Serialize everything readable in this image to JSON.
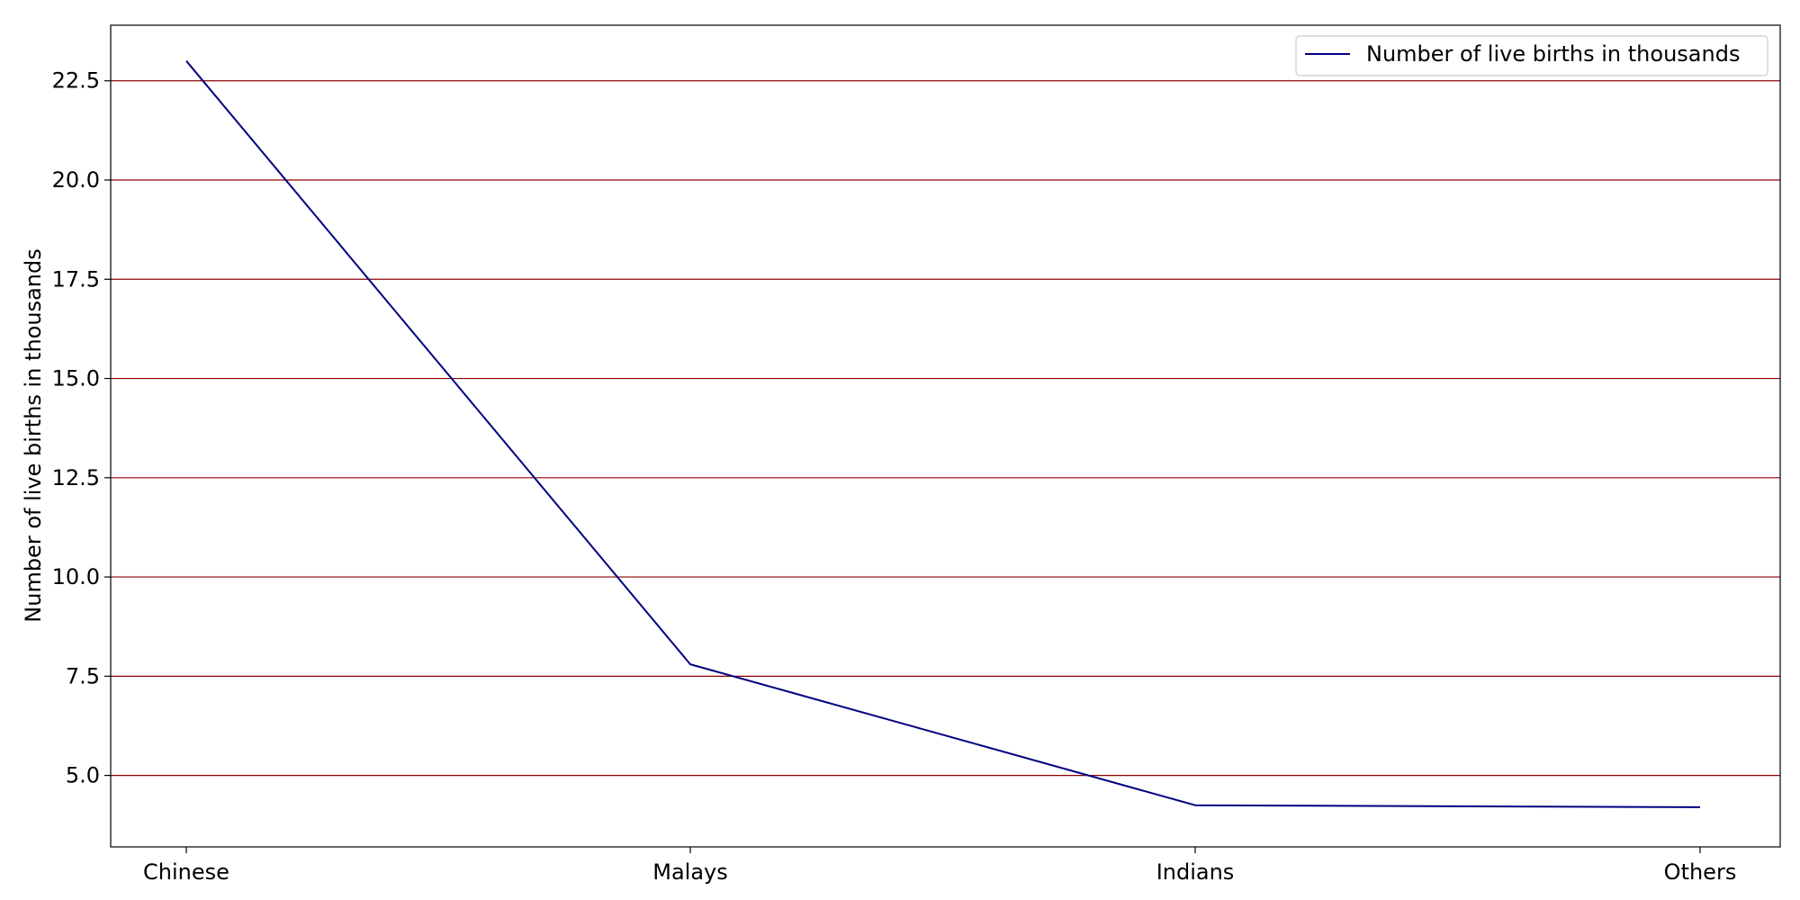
{
  "chart_data": {
    "type": "line",
    "title": "",
    "xlabel": "",
    "ylabel": "Number of live births in thousands",
    "categories": [
      "Chinese",
      "Malays",
      "Indians",
      "Others"
    ],
    "series": [
      {
        "name": "Number of live births in thousands",
        "values": [
          23.0,
          7.8,
          4.25,
          4.2
        ],
        "color": "#000080"
      }
    ],
    "ylim": [
      3.2,
      23.9
    ],
    "yticks": [
      5.0,
      7.5,
      10.0,
      12.5,
      15.0,
      17.5,
      20.0,
      22.5
    ],
    "ytick_labels": [
      "5.0",
      "7.5",
      "10.0",
      "12.5",
      "15.0",
      "17.5",
      "20.0",
      "22.5"
    ],
    "grid": {
      "axis": "y",
      "on": true,
      "color": "#8b0000"
    },
    "legend": {
      "position": "upper right",
      "entries": [
        "Number of live births in thousands"
      ]
    }
  }
}
